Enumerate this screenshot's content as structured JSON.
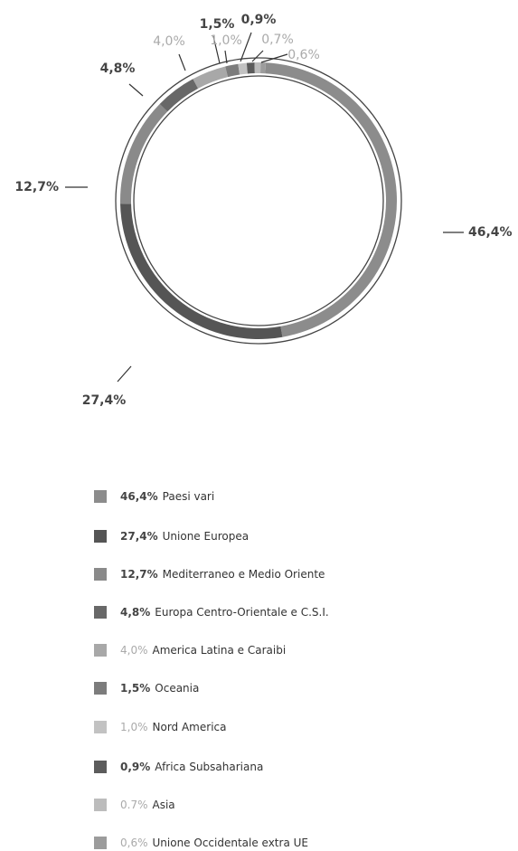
{
  "chart_data": {
    "type": "pie",
    "categories": [
      "Paesi vari",
      "Unione Europea",
      "Mediterraneo e Medio Oriente",
      "Europa Centro-Orientale e C.S.I.",
      "America Latina e Caraibi",
      "Oceania",
      "Nord America",
      "Africa Subsahariana",
      "Asia",
      "Unione Occidentale extra UE"
    ],
    "values": [
      46.4,
      27.4,
      12.7,
      4.8,
      4.0,
      1.5,
      1.0,
      0.9,
      0.7,
      0.6
    ],
    "value_labels": [
      "46,4%",
      "27,4%",
      "12,7%",
      "4,8%",
      "4,0%",
      "1,5%",
      "1,0%",
      "0,9%",
      "0,7%",
      "0,6%"
    ],
    "legend_value_labels": [
      "46,4%",
      "27,4%",
      "12,7%",
      "4,8%",
      "4,0%",
      "1,5%",
      "1,0%",
      "0,9%",
      "0.7%",
      "0,6%"
    ],
    "colors": [
      "#8c8c8c",
      "#555555",
      "#8a8a8a",
      "#686868",
      "#a8a8a8",
      "#7c7c7c",
      "#c2c2c2",
      "#5c5c5c",
      "#bcbcbc",
      "#9c9c9c"
    ]
  }
}
